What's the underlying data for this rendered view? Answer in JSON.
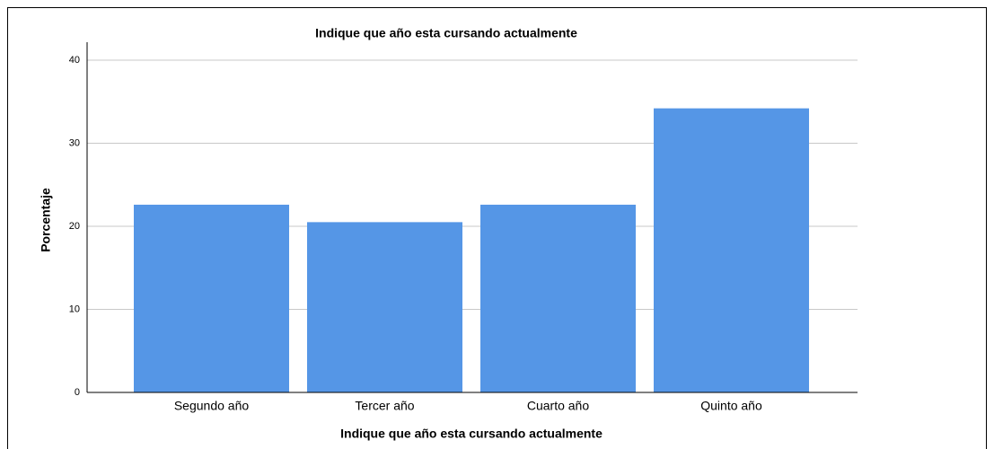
{
  "chart_data": {
    "type": "bar",
    "title": "Indique que año esta cursando actualmente",
    "x_label": "Indique que año esta cursando actualmente",
    "y_label": "Porcentaje",
    "categories": [
      "Segundo año",
      "Tercer año",
      "Cuarto año",
      "Quinto año"
    ],
    "values": [
      22.6,
      20.5,
      22.6,
      34.2
    ],
    "color": "#5596e6",
    "ylim": [
      0,
      40
    ],
    "yticks": [
      0,
      10,
      20,
      30,
      40
    ],
    "grid": true
  }
}
